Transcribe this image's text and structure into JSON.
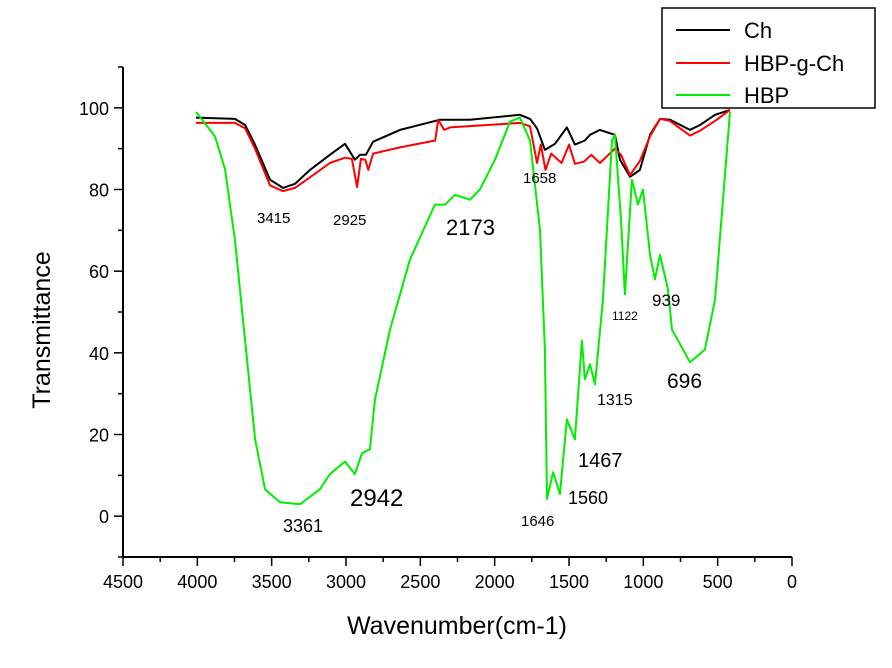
{
  "chart_data": {
    "type": "line",
    "title": "",
    "xlabel": "Wavenumber(cm-1)",
    "ylabel": "Transmittance",
    "xlim": [
      4500,
      0
    ],
    "ylim": [
      -10,
      110
    ],
    "x_reversed": true,
    "xticks": [
      4500,
      4000,
      3500,
      3000,
      2500,
      2000,
      1500,
      1000,
      500,
      0
    ],
    "yticks": [
      0,
      20,
      40,
      60,
      80,
      100
    ],
    "grid": false,
    "legend": {
      "position": "top-right",
      "entries": [
        "Ch",
        "HBP-g-Ch",
        "HBP"
      ]
    },
    "series": [
      {
        "name": "Ch",
        "color": "#000000",
        "points": [
          [
            4009,
            97.6
          ],
          [
            3747,
            97.3
          ],
          [
            3679,
            95.8
          ],
          [
            3612,
            91
          ],
          [
            3511,
            82.4
          ],
          [
            3424,
            80.4
          ],
          [
            3343,
            81.4
          ],
          [
            3242,
            84.8
          ],
          [
            3108,
            88.5
          ],
          [
            3007,
            91.2
          ],
          [
            2940,
            87.3
          ],
          [
            2906,
            88.5
          ],
          [
            2866,
            88.5
          ],
          [
            2818,
            91.7
          ],
          [
            2637,
            94.6
          ],
          [
            2368,
            97.1
          ],
          [
            2166,
            97.1
          ],
          [
            1830,
            98.3
          ],
          [
            1762,
            97.3
          ],
          [
            1715,
            95
          ],
          [
            1662,
            89.7
          ],
          [
            1594,
            91.2
          ],
          [
            1514,
            95.2
          ],
          [
            1460,
            91
          ],
          [
            1393,
            92
          ],
          [
            1359,
            93.4
          ],
          [
            1292,
            94.6
          ],
          [
            1191,
            93.4
          ],
          [
            1157,
            87.3
          ],
          [
            1090,
            83.1
          ],
          [
            1023,
            84.8
          ],
          [
            955,
            93.4
          ],
          [
            888,
            97.3
          ],
          [
            821,
            97.1
          ],
          [
            686,
            94.6
          ],
          [
            619,
            95.8
          ],
          [
            518,
            98.3
          ],
          [
            417,
            99.5
          ]
        ]
      },
      {
        "name": "HBP-g-Ch",
        "color": "#ff0000",
        "points": [
          [
            4009,
            96.3
          ],
          [
            3747,
            96.3
          ],
          [
            3679,
            95
          ],
          [
            3612,
            90
          ],
          [
            3511,
            81
          ],
          [
            3424,
            79.6
          ],
          [
            3343,
            80.4
          ],
          [
            3242,
            83
          ],
          [
            3108,
            86.5
          ],
          [
            3007,
            87.8
          ],
          [
            2960,
            87.5
          ],
          [
            2925,
            80.6
          ],
          [
            2900,
            87.5
          ],
          [
            2870,
            87.3
          ],
          [
            2850,
            84.8
          ],
          [
            2818,
            88.8
          ],
          [
            2637,
            90.3
          ],
          [
            2400,
            92
          ],
          [
            2380,
            97.1
          ],
          [
            2340,
            94.6
          ],
          [
            2300,
            95.2
          ],
          [
            1830,
            96.3
          ],
          [
            1762,
            95.5
          ],
          [
            1715,
            86.5
          ],
          [
            1690,
            91
          ],
          [
            1658,
            84.8
          ],
          [
            1620,
            88.8
          ],
          [
            1550,
            86.5
          ],
          [
            1500,
            91
          ],
          [
            1460,
            86.3
          ],
          [
            1400,
            86.8
          ],
          [
            1350,
            88.5
          ],
          [
            1292,
            86.5
          ],
          [
            1191,
            90
          ],
          [
            1150,
            88.5
          ],
          [
            1090,
            83.5
          ],
          [
            1023,
            87
          ],
          [
            955,
            93
          ],
          [
            888,
            97.3
          ],
          [
            821,
            96.8
          ],
          [
            686,
            93.2
          ],
          [
            619,
            94.4
          ],
          [
            518,
            96.8
          ],
          [
            417,
            99.5
          ]
        ]
      },
      {
        "name": "HBP",
        "color": "#00ee00",
        "points": [
          [
            4009,
            99
          ],
          [
            3881,
            93
          ],
          [
            3814,
            85
          ],
          [
            3747,
            67.7
          ],
          [
            3679,
            43
          ],
          [
            3612,
            19
          ],
          [
            3545,
            6.6
          ],
          [
            3444,
            3.4
          ],
          [
            3310,
            2.9
          ],
          [
            3175,
            6.6
          ],
          [
            3108,
            10.3
          ],
          [
            3007,
            13.4
          ],
          [
            2940,
            10.3
          ],
          [
            2893,
            15.4
          ],
          [
            2839,
            16.4
          ],
          [
            2805,
            28.6
          ],
          [
            2704,
            45.7
          ],
          [
            2570,
            62.8
          ],
          [
            2402,
            76.3
          ],
          [
            2334,
            76.3
          ],
          [
            2267,
            78.7
          ],
          [
            2166,
            77.5
          ],
          [
            2099,
            80
          ],
          [
            1998,
            87.3
          ],
          [
            1897,
            96.6
          ],
          [
            1830,
            97.6
          ],
          [
            1762,
            92
          ],
          [
            1695,
            70
          ],
          [
            1662,
            40.8
          ],
          [
            1648,
            4.2
          ],
          [
            1607,
            10.8
          ],
          [
            1561,
            5.4
          ],
          [
            1514,
            23.7
          ],
          [
            1460,
            18.8
          ],
          [
            1413,
            43
          ],
          [
            1393,
            33.5
          ],
          [
            1359,
            37.2
          ],
          [
            1325,
            32.3
          ],
          [
            1272,
            53
          ],
          [
            1211,
            92
          ],
          [
            1191,
            93.4
          ],
          [
            1150,
            72.6
          ],
          [
            1124,
            54.3
          ],
          [
            1077,
            82.4
          ],
          [
            1036,
            76.3
          ],
          [
            1002,
            80
          ],
          [
            955,
            64
          ],
          [
            922,
            58
          ],
          [
            888,
            64
          ],
          [
            834,
            55.5
          ],
          [
            807,
            45.7
          ],
          [
            686,
            37.7
          ],
          [
            586,
            40.8
          ],
          [
            518,
            53
          ],
          [
            417,
            99
          ]
        ]
      }
    ],
    "annotations": [
      "3415",
      "2925",
      "2173",
      "1658",
      "1122",
      "939",
      "1315",
      "696",
      "1467",
      "1560",
      "1646",
      "3361",
      "2942"
    ]
  }
}
